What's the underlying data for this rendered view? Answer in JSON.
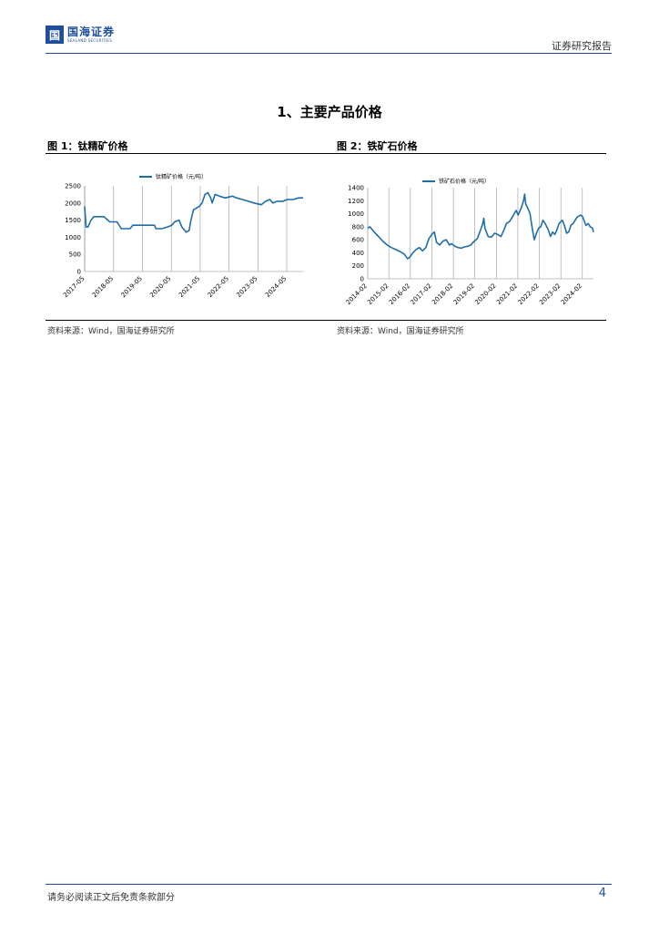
{
  "header": {
    "logo_mark": "国",
    "logo_cn": "国海证券",
    "logo_en": "SEALAND SECURITIES",
    "right_text": "证券研究报告"
  },
  "section_title": "1、主要产品价格",
  "figures": [
    {
      "title": "图 1：钛精矿价格",
      "source": "资料来源：Wind，国海证券研究所"
    },
    {
      "title": "图 2：铁矿石价格",
      "source": "资料来源：Wind，国海证券研究所"
    }
  ],
  "footer": {
    "text": "请务必阅读正文后免责条款部分",
    "page_number": "4"
  },
  "colors": {
    "line": "#1f6ea8",
    "brand": "#1f4e9a"
  },
  "chart_data": [
    {
      "type": "line",
      "series": [
        {
          "name": "钛精矿价格（元/吨）",
          "points": [
            [
              2017.33,
              1900
            ],
            [
              2017.38,
              1300
            ],
            [
              2017.45,
              1300
            ],
            [
              2017.55,
              1500
            ],
            [
              2017.65,
              1600
            ],
            [
              2018.0,
              1600
            ],
            [
              2018.2,
              1450
            ],
            [
              2018.45,
              1450
            ],
            [
              2018.6,
              1250
            ],
            [
              2018.9,
              1250
            ],
            [
              2019.0,
              1350
            ],
            [
              2019.4,
              1350
            ],
            [
              2019.75,
              1350
            ],
            [
              2019.8,
              1250
            ],
            [
              2020.0,
              1250
            ],
            [
              2020.2,
              1300
            ],
            [
              2020.35,
              1350
            ],
            [
              2020.45,
              1450
            ],
            [
              2020.6,
              1500
            ],
            [
              2020.7,
              1300
            ],
            [
              2020.85,
              1150
            ],
            [
              2020.95,
              1200
            ],
            [
              2021.0,
              1450
            ],
            [
              2021.1,
              1800
            ],
            [
              2021.2,
              1850
            ],
            [
              2021.3,
              1900
            ],
            [
              2021.4,
              2000
            ],
            [
              2021.5,
              2250
            ],
            [
              2021.6,
              2300
            ],
            [
              2021.7,
              2150
            ],
            [
              2021.75,
              2000
            ],
            [
              2021.85,
              2250
            ],
            [
              2022.0,
              2200
            ],
            [
              2022.2,
              2150
            ],
            [
              2022.45,
              2200
            ],
            [
              2022.6,
              2150
            ],
            [
              2022.8,
              2100
            ],
            [
              2023.0,
              2050
            ],
            [
              2023.2,
              2000
            ],
            [
              2023.45,
              1950
            ],
            [
              2023.6,
              2050
            ],
            [
              2023.75,
              2100
            ],
            [
              2023.85,
              2000
            ],
            [
              2024.0,
              2050
            ],
            [
              2024.2,
              2050
            ],
            [
              2024.35,
              2100
            ],
            [
              2024.55,
              2100
            ],
            [
              2024.75,
              2150
            ],
            [
              2024.9,
              2150
            ]
          ]
        }
      ],
      "x_ticks": [
        "2017-05",
        "2018-05",
        "2019-05",
        "2020-05",
        "2021-05",
        "2022-05",
        "2023-05",
        "2024-05"
      ],
      "y_ticks": [
        "0",
        "500",
        "1000",
        "1500",
        "2000",
        "2500"
      ],
      "xlim": [
        2017.33,
        2024.9
      ],
      "ylim": [
        0,
        2500
      ]
    },
    {
      "type": "line",
      "series": [
        {
          "name": "铁矿石价格（元/吨）",
          "points": [
            [
              2014.1,
              780
            ],
            [
              2014.2,
              800
            ],
            [
              2014.4,
              720
            ],
            [
              2014.6,
              650
            ],
            [
              2014.8,
              580
            ],
            [
              2015.0,
              520
            ],
            [
              2015.2,
              480
            ],
            [
              2015.4,
              450
            ],
            [
              2015.6,
              420
            ],
            [
              2015.8,
              380
            ],
            [
              2015.95,
              310
            ],
            [
              2016.05,
              330
            ],
            [
              2016.2,
              400
            ],
            [
              2016.35,
              450
            ],
            [
              2016.5,
              480
            ],
            [
              2016.65,
              430
            ],
            [
              2016.8,
              480
            ],
            [
              2016.95,
              620
            ],
            [
              2017.1,
              690
            ],
            [
              2017.2,
              720
            ],
            [
              2017.3,
              560
            ],
            [
              2017.45,
              520
            ],
            [
              2017.6,
              580
            ],
            [
              2017.75,
              600
            ],
            [
              2017.9,
              520
            ],
            [
              2018.0,
              540
            ],
            [
              2018.15,
              500
            ],
            [
              2018.3,
              480
            ],
            [
              2018.45,
              470
            ],
            [
              2018.6,
              490
            ],
            [
              2018.75,
              500
            ],
            [
              2018.9,
              520
            ],
            [
              2019.0,
              560
            ],
            [
              2019.2,
              620
            ],
            [
              2019.35,
              750
            ],
            [
              2019.45,
              850
            ],
            [
              2019.5,
              930
            ],
            [
              2019.55,
              780
            ],
            [
              2019.7,
              650
            ],
            [
              2019.85,
              640
            ],
            [
              2020.0,
              700
            ],
            [
              2020.15,
              680
            ],
            [
              2020.3,
              650
            ],
            [
              2020.45,
              760
            ],
            [
              2020.55,
              850
            ],
            [
              2020.7,
              880
            ],
            [
              2020.85,
              960
            ],
            [
              2021.0,
              1050
            ],
            [
              2021.1,
              980
            ],
            [
              2021.25,
              1100
            ],
            [
              2021.35,
              1200
            ],
            [
              2021.4,
              1300
            ],
            [
              2021.45,
              1150
            ],
            [
              2021.55,
              1080
            ],
            [
              2021.65,
              1000
            ],
            [
              2021.75,
              780
            ],
            [
              2021.85,
              600
            ],
            [
              2021.95,
              700
            ],
            [
              2022.05,
              780
            ],
            [
              2022.15,
              800
            ],
            [
              2022.25,
              900
            ],
            [
              2022.35,
              850
            ],
            [
              2022.5,
              750
            ],
            [
              2022.6,
              650
            ],
            [
              2022.7,
              720
            ],
            [
              2022.8,
              680
            ],
            [
              2022.9,
              750
            ],
            [
              2023.0,
              850
            ],
            [
              2023.15,
              900
            ],
            [
              2023.25,
              820
            ],
            [
              2023.35,
              700
            ],
            [
              2023.45,
              720
            ],
            [
              2023.55,
              820
            ],
            [
              2023.65,
              850
            ],
            [
              2023.75,
              900
            ],
            [
              2023.85,
              950
            ],
            [
              2024.0,
              980
            ],
            [
              2024.1,
              950
            ],
            [
              2024.25,
              820
            ],
            [
              2024.35,
              850
            ],
            [
              2024.45,
              800
            ],
            [
              2024.55,
              780
            ],
            [
              2024.6,
              720
            ]
          ]
        }
      ],
      "x_ticks": [
        "2014-02",
        "2015-02",
        "2016-02",
        "2017-02",
        "2018-02",
        "2019-02",
        "2020-02",
        "2021-02",
        "2022-02",
        "2023-02",
        "2024-02"
      ],
      "y_ticks": [
        "0",
        "200",
        "400",
        "600",
        "800",
        "1000",
        "1200",
        "1400"
      ],
      "xlim": [
        2014.1,
        2024.6
      ],
      "ylim": [
        0,
        1400
      ]
    }
  ]
}
